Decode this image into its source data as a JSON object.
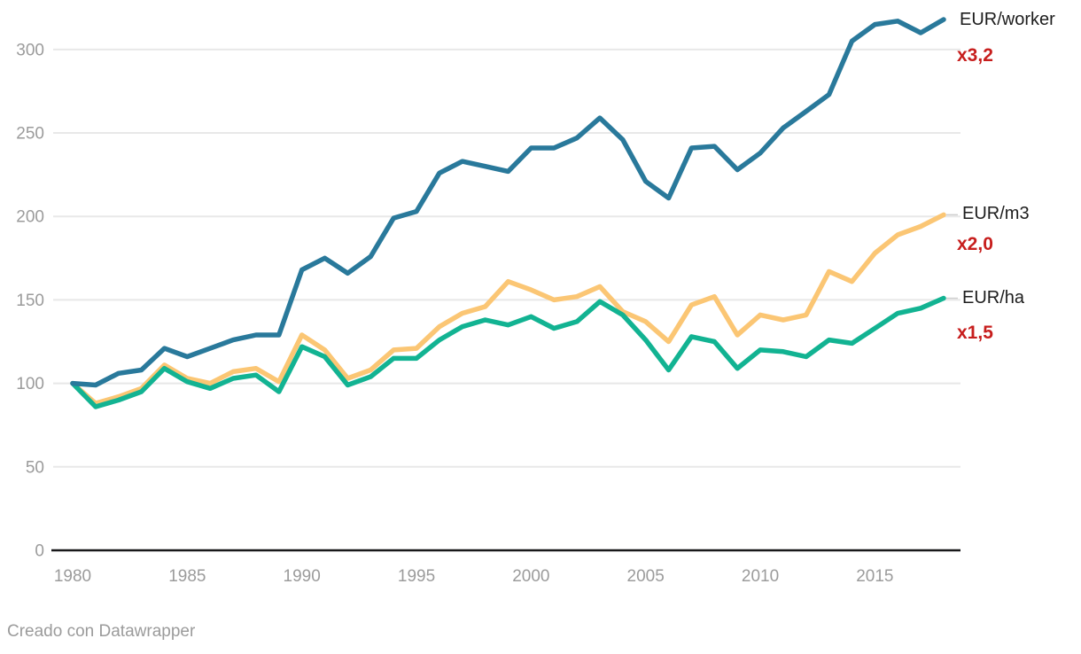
{
  "chart_data": {
    "type": "line",
    "title": "",
    "x_years": [
      1980,
      1981,
      1982,
      1983,
      1984,
      1985,
      1986,
      1987,
      1988,
      1989,
      1990,
      1991,
      1992,
      1993,
      1994,
      1995,
      1996,
      1997,
      1998,
      1999,
      2000,
      2001,
      2002,
      2003,
      2004,
      2005,
      2006,
      2007,
      2008,
      2009,
      2010,
      2011,
      2012,
      2013,
      2014,
      2015,
      2016,
      2017,
      2018
    ],
    "series": [
      {
        "label": "EUR/worker",
        "multiplier": "x3,2",
        "color": "#29799b",
        "values": [
          100,
          99,
          106,
          108,
          121,
          116,
          121,
          126,
          129,
          129,
          168,
          175,
          166,
          176,
          199,
          203,
          226,
          233,
          230,
          227,
          241,
          241,
          247,
          259,
          246,
          221,
          211,
          241,
          242,
          228,
          238,
          253,
          263,
          273,
          305,
          315,
          317,
          310,
          318
        ]
      },
      {
        "label": "EUR/m3",
        "multiplier": "x2,0",
        "color": "#fbc674",
        "values": [
          100,
          88,
          92,
          97,
          111,
          103,
          100,
          107,
          109,
          101,
          129,
          120,
          103,
          108,
          120,
          121,
          134,
          142,
          146,
          161,
          156,
          150,
          152,
          158,
          143,
          137,
          125,
          147,
          152,
          129,
          141,
          138,
          141,
          167,
          161,
          178,
          189,
          194,
          201
        ]
      },
      {
        "label": "EUR/ha",
        "multiplier": "x1,5",
        "color": "#12b392",
        "values": [
          100,
          86,
          90,
          95,
          109,
          101,
          97,
          103,
          105,
          95,
          122,
          116,
          99,
          104,
          115,
          115,
          126,
          134,
          138,
          135,
          140,
          133,
          137,
          149,
          141,
          126,
          108,
          128,
          125,
          109,
          120,
          119,
          116,
          126,
          124,
          133,
          142,
          145,
          151
        ]
      }
    ],
    "y_axis": {
      "ticks": [
        0,
        50,
        100,
        150,
        200,
        250,
        300
      ],
      "range": [
        0,
        330
      ]
    },
    "x_axis": {
      "tick_years": [
        1980,
        1985,
        1990,
        1995,
        2000,
        2005,
        2010,
        2015
      ]
    },
    "grid_on": true,
    "legend_position": "right",
    "multiplier_color": "#c71e1d",
    "series_label_color": "#1d1d1d",
    "axis_label_color": "#9b9b9b",
    "gridline_color": "#e8e8e8",
    "baseline_color": "#18181a"
  },
  "footer": {
    "credit": "Creado con Datawrapper"
  }
}
